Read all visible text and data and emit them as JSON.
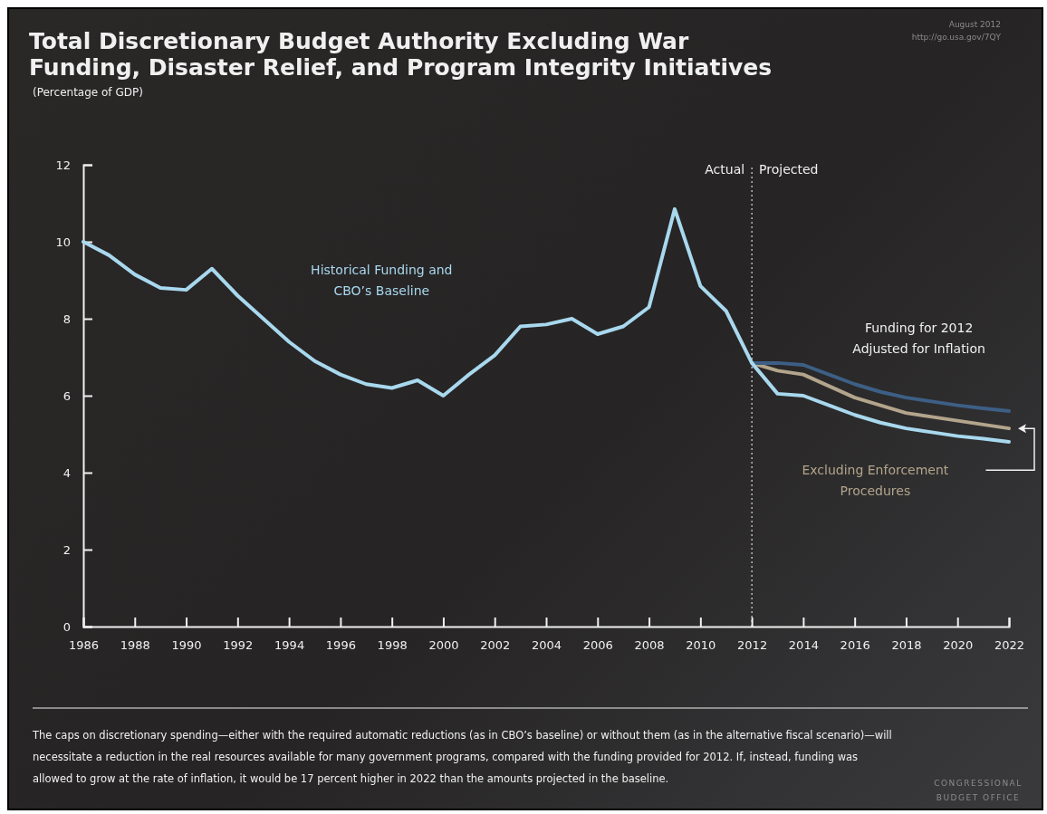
{
  "chart_data": {
    "type": "line",
    "title": "Total Discretionary Budget Authority Excluding War Funding, Disaster Relief, and Program Integrity Initiatives",
    "subtitle": "(Percentage of GDP)",
    "xlim": [
      1986,
      2022
    ],
    "xticks": [
      1986,
      1988,
      1990,
      1992,
      1994,
      1996,
      1998,
      2000,
      2002,
      2004,
      2006,
      2008,
      2010,
      2012,
      2014,
      2016,
      2018,
      2020,
      2022
    ],
    "ylim": [
      0,
      12
    ],
    "yticks": [
      0,
      2,
      4,
      6,
      8,
      10,
      12
    ],
    "grid": false,
    "marker": "none",
    "line_style": "solid",
    "series": [
      {
        "name": "Historical Funding and\nCBO’s Baseline",
        "color": "#a8d8ee",
        "x": [
          1986,
          1987,
          1988,
          1989,
          1990,
          1991,
          1992,
          1993,
          1994,
          1995,
          1996,
          1997,
          1998,
          1999,
          2000,
          2001,
          2002,
          2003,
          2004,
          2005,
          2006,
          2007,
          2008,
          2009,
          2010,
          2011,
          2012,
          2013,
          2014,
          2015,
          2016,
          2017,
          2018,
          2019,
          2020,
          2021,
          2022
        ],
        "values": [
          10.0,
          9.65,
          9.15,
          8.8,
          8.75,
          9.3,
          8.6,
          8.0,
          7.4,
          6.9,
          6.55,
          6.3,
          6.2,
          6.4,
          6.0,
          6.55,
          7.05,
          7.8,
          7.85,
          8.0,
          7.6,
          7.8,
          8.3,
          10.85,
          8.85,
          8.2,
          6.85,
          6.05,
          6.0,
          5.75,
          5.5,
          5.3,
          5.15,
          5.05,
          4.95,
          4.88,
          4.8
        ]
      },
      {
        "name": "Funding for 2012\nAdjusted for Inflation",
        "color": "#3d5f85",
        "x": [
          2012,
          2013,
          2014,
          2015,
          2016,
          2017,
          2018,
          2019,
          2020,
          2021,
          2022
        ],
        "values": [
          6.85,
          6.85,
          6.8,
          6.55,
          6.3,
          6.1,
          5.95,
          5.85,
          5.75,
          5.67,
          5.6
        ]
      },
      {
        "name": "Excluding Enforcement\nProcedures",
        "color": "#b3a58c",
        "x": [
          2012,
          2013,
          2014,
          2015,
          2016,
          2017,
          2018,
          2019,
          2020,
          2021,
          2022
        ],
        "values": [
          6.85,
          6.65,
          6.55,
          6.25,
          5.95,
          5.75,
          5.55,
          5.45,
          5.35,
          5.25,
          5.15
        ]
      }
    ],
    "ref_lines": [
      {
        "axis": "x",
        "value": 2012,
        "color": "#ffffff",
        "line_style": "dotted"
      }
    ],
    "annotations": [
      "August 2012",
      "http://go.usa.gov/7QY",
      {
        "text": "Actual",
        "x": 2012,
        "y": 12
      },
      {
        "text": "Projected",
        "x": 2012,
        "y": 12
      },
      "The caps on discretionary spending—either with the required automatic reductions (as in CBO’s baseline) or without them (as in the alternative fiscal scenario)—will necessitate a reduction in the real resources available for many government programs, compared with the funding provided for 2012. If, instead, funding was allowed to grow at the rate of inflation, it would be 17 percent higher in 2022 than the amounts projected in the baseline.",
      "CONGRESSIONAL BUDGET OFFICE"
    ]
  }
}
